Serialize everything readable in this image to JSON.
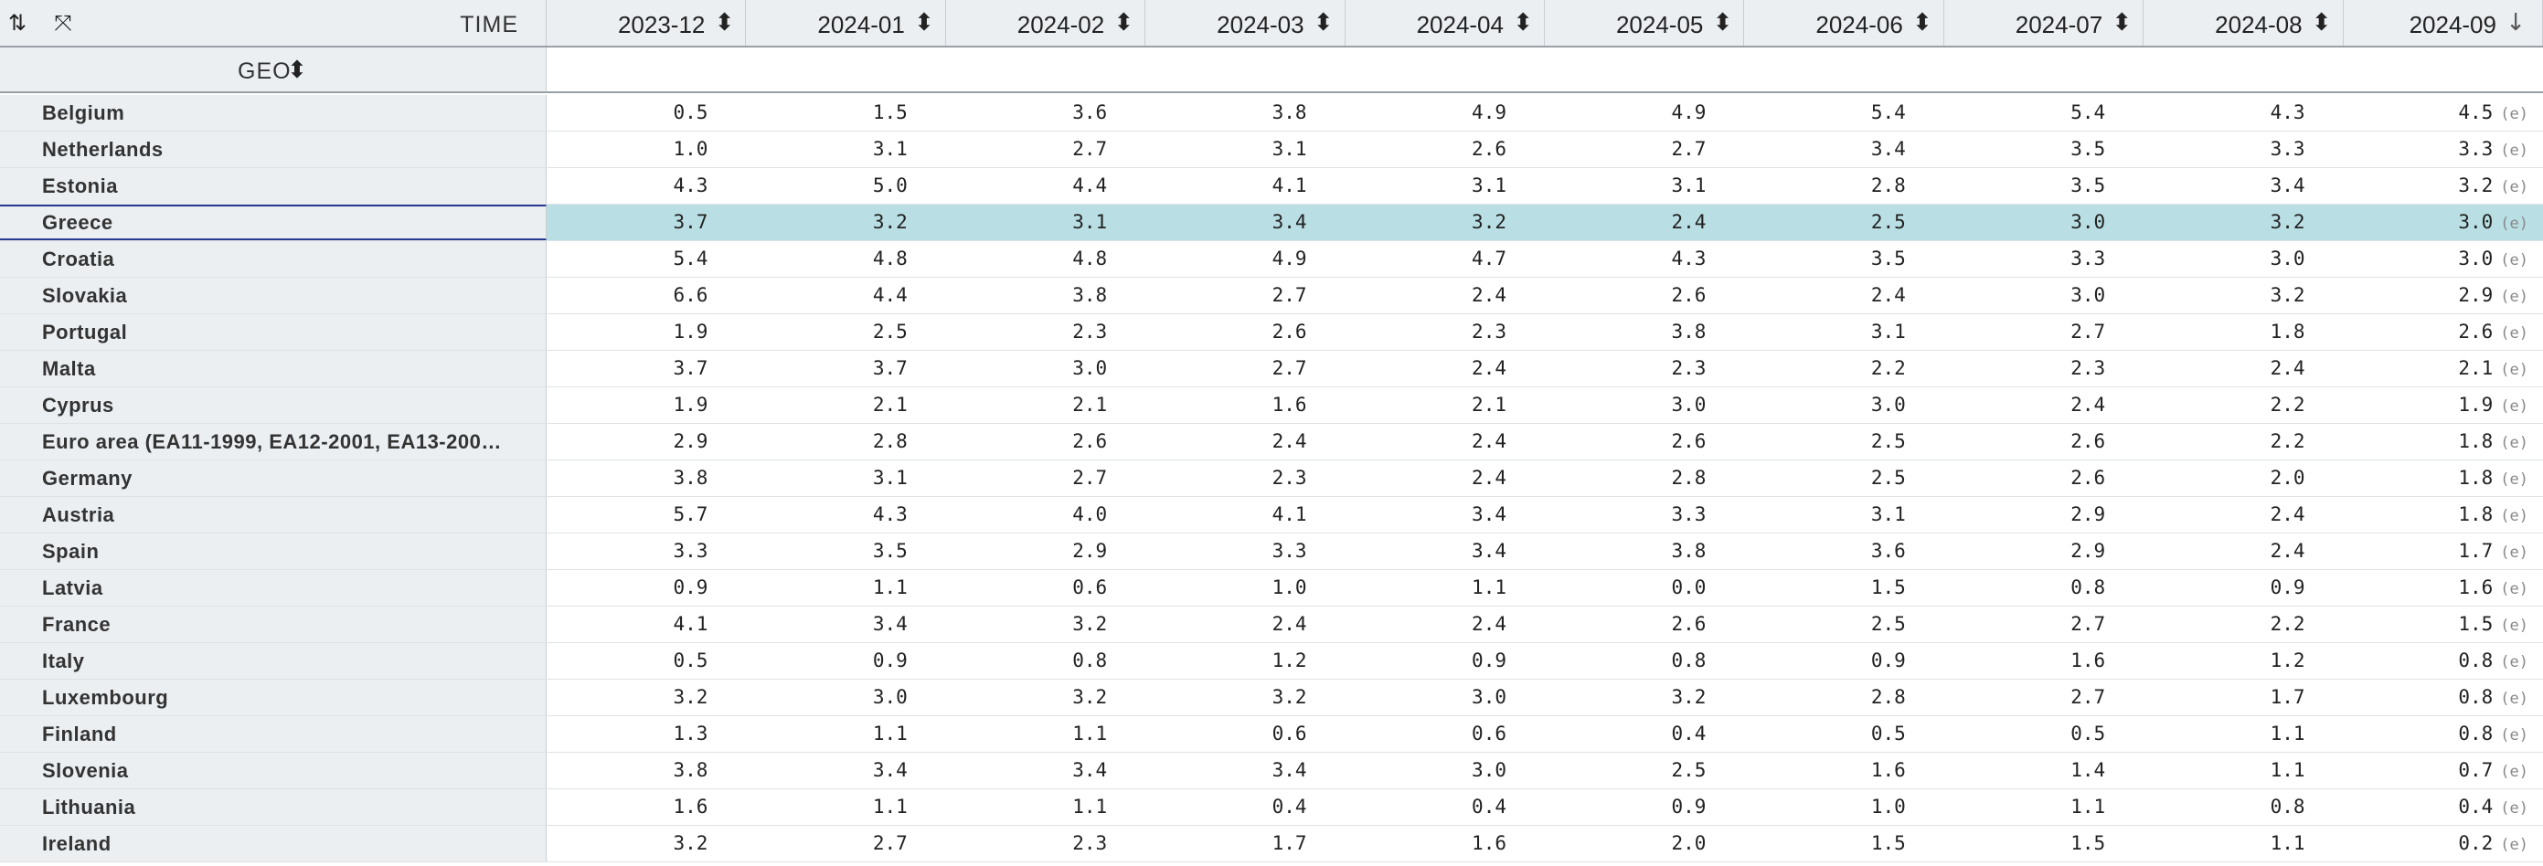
{
  "header": {
    "time_label": "TIME",
    "geo_label": "GEO",
    "sort_icon": "sort-updown-icon",
    "expand_icon": "expand-icon",
    "columns": [
      "2023-12",
      "2024-01",
      "2024-02",
      "2024-03",
      "2024-04",
      "2024-05",
      "2024-06",
      "2024-07",
      "2024-08",
      "2024-09"
    ]
  },
  "flag": "(e)",
  "rows": [
    {
      "name": "Belgium",
      "values": [
        "0.5",
        "1.5",
        "3.6",
        "3.8",
        "4.9",
        "4.9",
        "5.4",
        "5.4",
        "4.3",
        "4.5"
      ]
    },
    {
      "name": "Netherlands",
      "values": [
        "1.0",
        "3.1",
        "2.7",
        "3.1",
        "2.6",
        "2.7",
        "3.4",
        "3.5",
        "3.3",
        "3.3"
      ]
    },
    {
      "name": "Estonia",
      "values": [
        "4.3",
        "5.0",
        "4.4",
        "4.1",
        "3.1",
        "3.1",
        "2.8",
        "3.5",
        "3.4",
        "3.2"
      ]
    },
    {
      "name": "Greece",
      "values": [
        "3.7",
        "3.2",
        "3.1",
        "3.4",
        "3.2",
        "2.4",
        "2.5",
        "3.0",
        "3.2",
        "3.0"
      ]
    },
    {
      "name": "Croatia",
      "values": [
        "5.4",
        "4.8",
        "4.8",
        "4.9",
        "4.7",
        "4.3",
        "3.5",
        "3.3",
        "3.0",
        "3.0"
      ]
    },
    {
      "name": "Slovakia",
      "values": [
        "6.6",
        "4.4",
        "3.8",
        "2.7",
        "2.4",
        "2.6",
        "2.4",
        "3.0",
        "3.2",
        "2.9"
      ]
    },
    {
      "name": "Portugal",
      "values": [
        "1.9",
        "2.5",
        "2.3",
        "2.6",
        "2.3",
        "3.8",
        "3.1",
        "2.7",
        "1.8",
        "2.6"
      ]
    },
    {
      "name": "Malta",
      "values": [
        "3.7",
        "3.7",
        "3.0",
        "2.7",
        "2.4",
        "2.3",
        "2.2",
        "2.3",
        "2.4",
        "2.1"
      ]
    },
    {
      "name": "Cyprus",
      "values": [
        "1.9",
        "2.1",
        "2.1",
        "1.6",
        "2.1",
        "3.0",
        "3.0",
        "2.4",
        "2.2",
        "1.9"
      ]
    },
    {
      "name": "Euro area (EA11-1999, EA12-2001, EA13-200…",
      "values": [
        "2.9",
        "2.8",
        "2.6",
        "2.4",
        "2.4",
        "2.6",
        "2.5",
        "2.6",
        "2.2",
        "1.8"
      ]
    },
    {
      "name": "Germany",
      "values": [
        "3.8",
        "3.1",
        "2.7",
        "2.3",
        "2.4",
        "2.8",
        "2.5",
        "2.6",
        "2.0",
        "1.8"
      ]
    },
    {
      "name": "Austria",
      "values": [
        "5.7",
        "4.3",
        "4.0",
        "4.1",
        "3.4",
        "3.3",
        "3.1",
        "2.9",
        "2.4",
        "1.8"
      ]
    },
    {
      "name": "Spain",
      "values": [
        "3.3",
        "3.5",
        "2.9",
        "3.3",
        "3.4",
        "3.8",
        "3.6",
        "2.9",
        "2.4",
        "1.7"
      ]
    },
    {
      "name": "Latvia",
      "values": [
        "0.9",
        "1.1",
        "0.6",
        "1.0",
        "1.1",
        "0.0",
        "1.5",
        "0.8",
        "0.9",
        "1.6"
      ]
    },
    {
      "name": "France",
      "values": [
        "4.1",
        "3.4",
        "3.2",
        "2.4",
        "2.4",
        "2.6",
        "2.5",
        "2.7",
        "2.2",
        "1.5"
      ]
    },
    {
      "name": "Italy",
      "values": [
        "0.5",
        "0.9",
        "0.8",
        "1.2",
        "0.9",
        "0.8",
        "0.9",
        "1.6",
        "1.2",
        "0.8"
      ]
    },
    {
      "name": "Luxembourg",
      "values": [
        "3.2",
        "3.0",
        "3.2",
        "3.2",
        "3.0",
        "3.2",
        "2.8",
        "2.7",
        "1.7",
        "0.8"
      ]
    },
    {
      "name": "Finland",
      "values": [
        "1.3",
        "1.1",
        "1.1",
        "0.6",
        "0.6",
        "0.4",
        "0.5",
        "0.5",
        "1.1",
        "0.8"
      ]
    },
    {
      "name": "Slovenia",
      "values": [
        "3.8",
        "3.4",
        "3.4",
        "3.4",
        "3.0",
        "2.5",
        "1.6",
        "1.4",
        "1.1",
        "0.7"
      ]
    },
    {
      "name": "Lithuania",
      "values": [
        "1.6",
        "1.1",
        "1.1",
        "0.4",
        "0.4",
        "0.9",
        "1.0",
        "1.1",
        "0.8",
        "0.4"
      ]
    },
    {
      "name": "Ireland",
      "values": [
        "3.2",
        "2.7",
        "2.3",
        "1.7",
        "1.6",
        "2.0",
        "1.5",
        "1.5",
        "1.1",
        "0.2"
      ]
    }
  ],
  "selected_row": "Greece",
  "colors": {
    "selected_bg": "#b9dfe4",
    "selected_border": "#2b3a8f",
    "header_bg": "#eceff2"
  }
}
